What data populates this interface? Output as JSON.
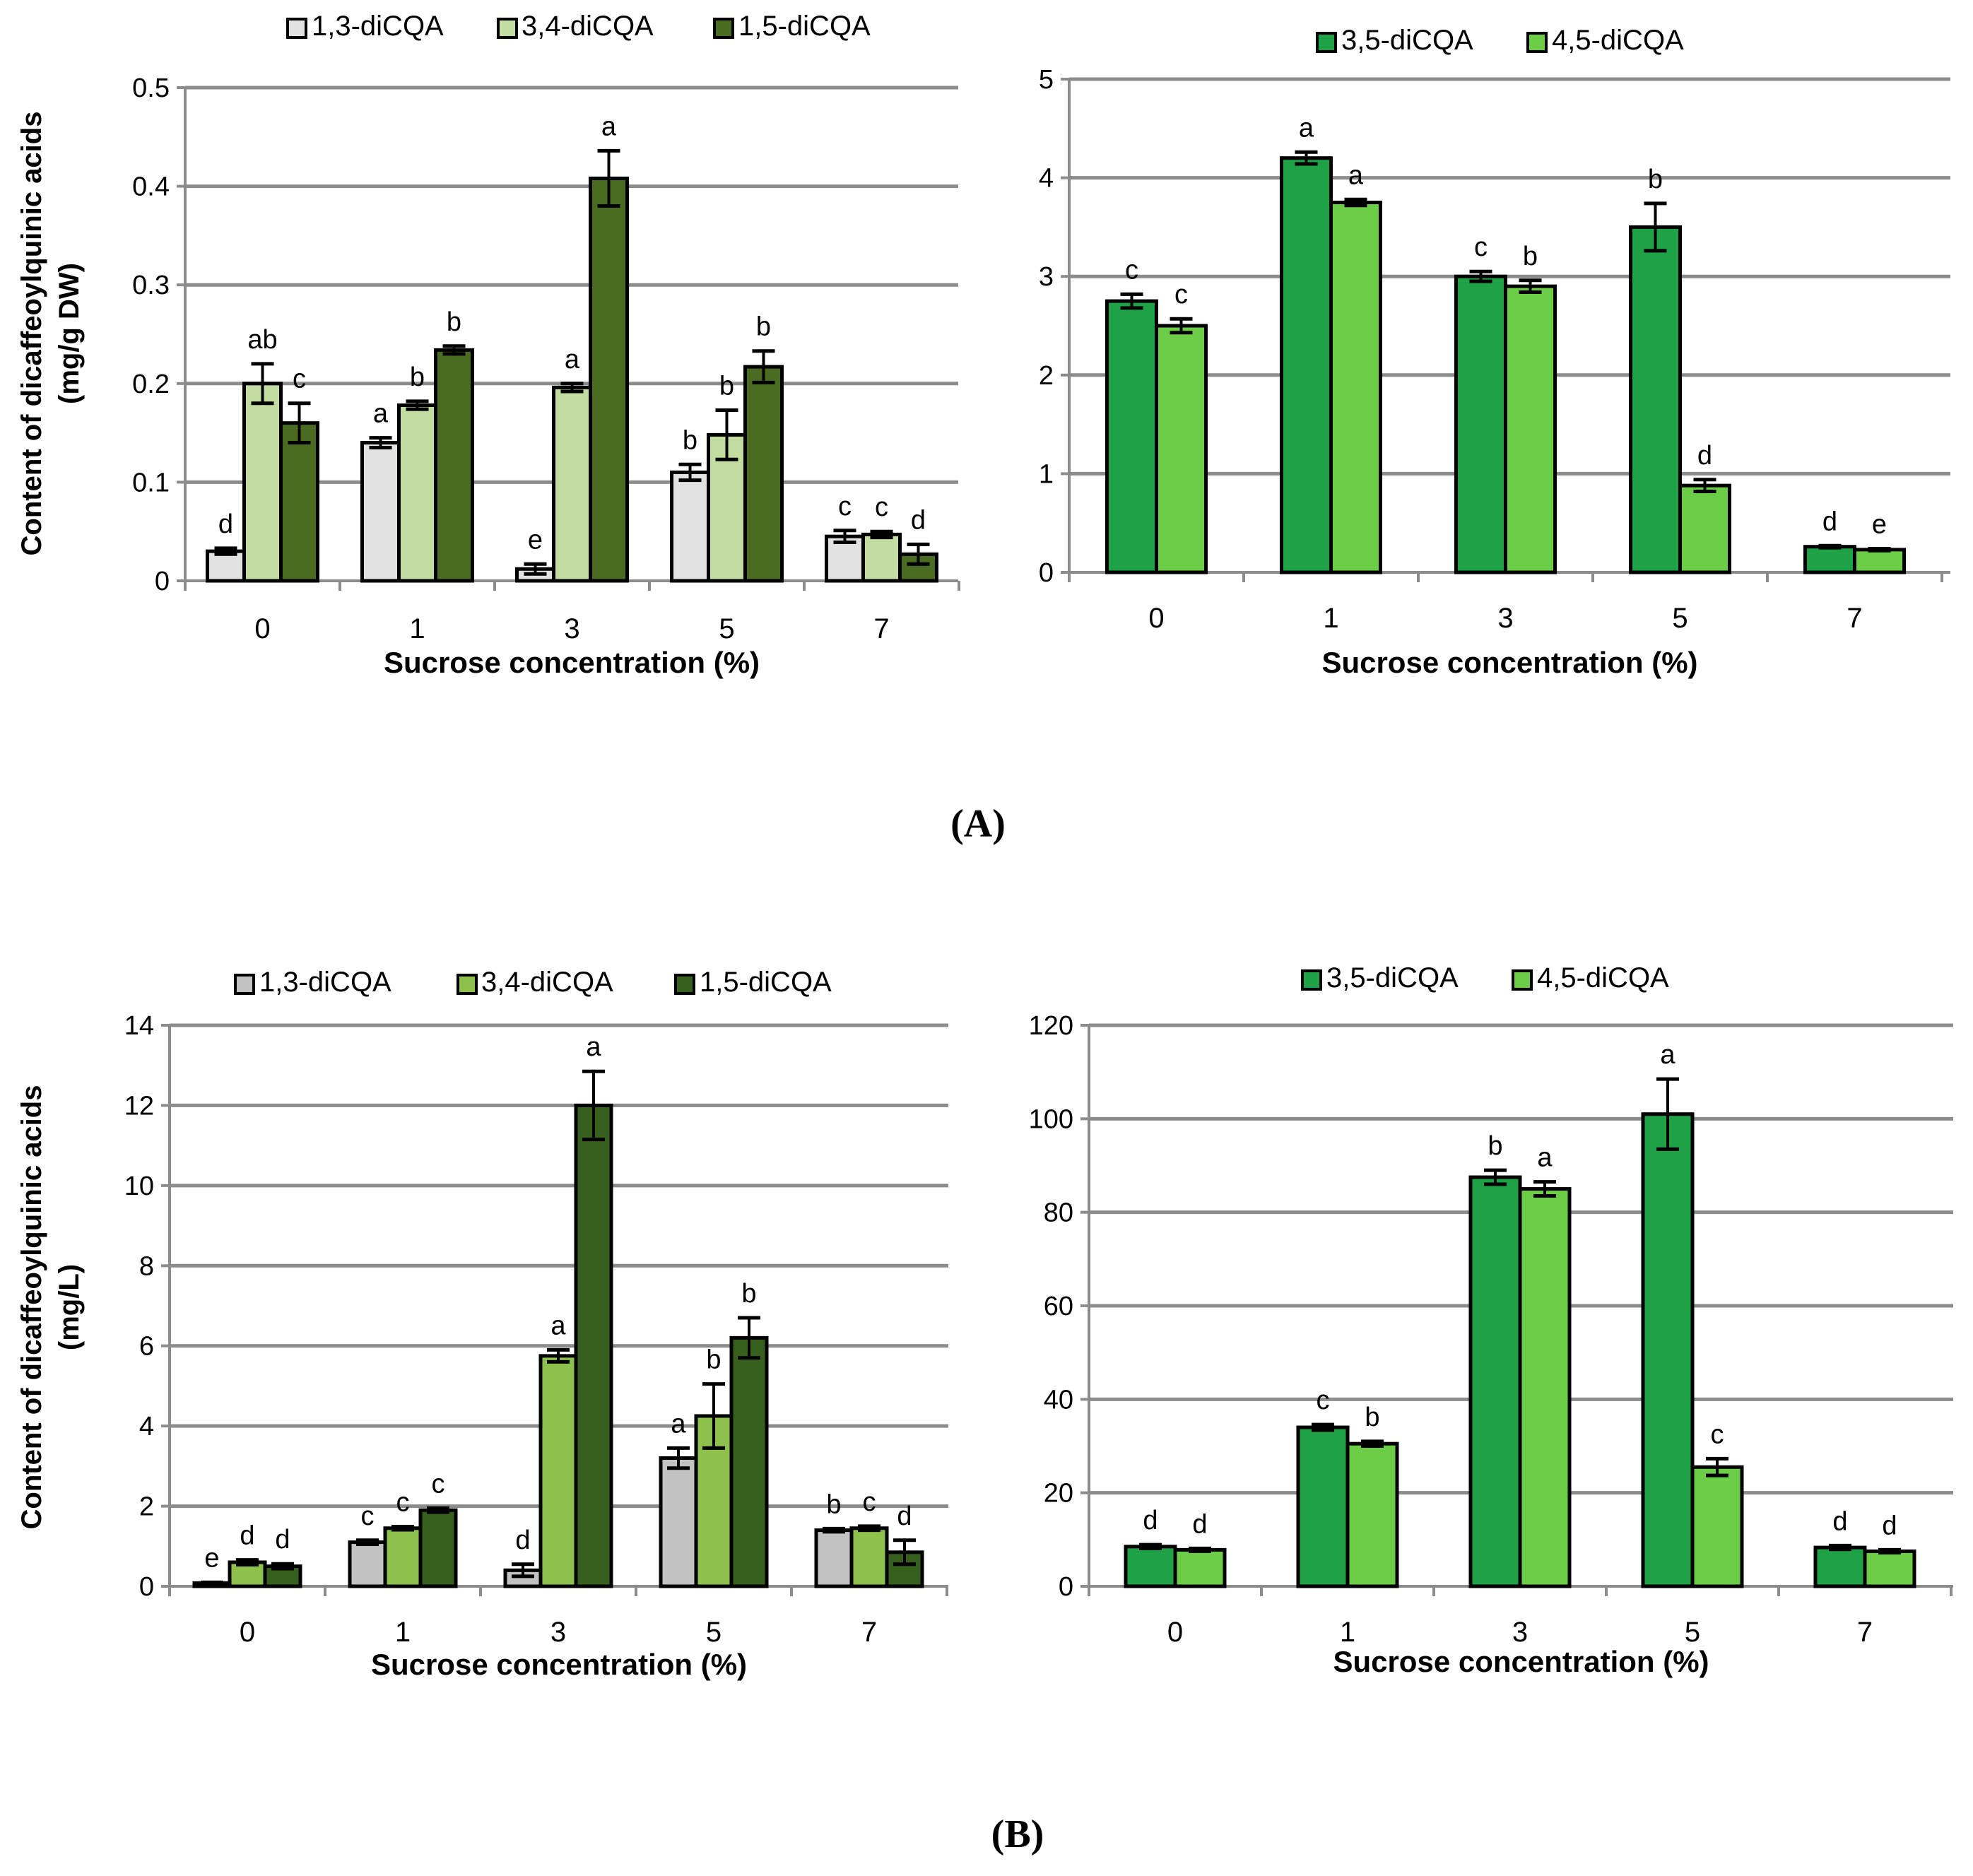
{
  "panels": [
    {
      "id": "A",
      "label": "(A)"
    },
    {
      "id": "B",
      "label": "(B)"
    }
  ],
  "chart_data": [
    {
      "id": "A-left",
      "type": "bar",
      "panel": "A",
      "title": "",
      "xlabel": "Sucrose concentration (%)",
      "ylabel": [
        "Content of dicaffeoylquinic acids",
        "(mg/g DW)"
      ],
      "categories": [
        "0",
        "1",
        "3",
        "5",
        "7"
      ],
      "ylim": [
        0,
        0.5
      ],
      "yticks": [
        0,
        0.1,
        0.2,
        0.3,
        0.4,
        0.5
      ],
      "ytick_labels": [
        "0",
        "0.1",
        "0.2",
        "0.3",
        "0.4",
        "0.5"
      ],
      "grid": true,
      "legend": "top",
      "series": [
        {
          "name": "1,3-diCQA",
          "color": "#e2e2e2",
          "values": [
            0.03,
            0.14,
            0.012,
            0.11,
            0.045
          ],
          "errors": [
            0.003,
            0.005,
            0.005,
            0.008,
            0.006
          ],
          "letters": [
            "d",
            "a",
            "e",
            "b",
            "c"
          ]
        },
        {
          "name": "3,4-diCQA",
          "color": "#c3dca2",
          "values": [
            0.2,
            0.178,
            0.196,
            0.148,
            0.047
          ],
          "errors": [
            0.02,
            0.004,
            0.004,
            0.025,
            0.003
          ],
          "letters": [
            "ab",
            "b",
            "a",
            "b",
            "c"
          ]
        },
        {
          "name": "1,5-diCQA",
          "color": "#4a6b22",
          "values": [
            0.16,
            0.234,
            0.408,
            0.217,
            0.027
          ],
          "errors": [
            0.02,
            0.004,
            0.028,
            0.016,
            0.01
          ],
          "letters": [
            "c",
            "b",
            "a",
            "b",
            "d"
          ]
        }
      ]
    },
    {
      "id": "A-right",
      "type": "bar",
      "panel": "A",
      "title": "",
      "xlabel": "Sucrose concentration (%)",
      "ylabel": "",
      "categories": [
        "0",
        "1",
        "3",
        "5",
        "7"
      ],
      "ylim": [
        0,
        5
      ],
      "yticks": [
        0,
        1,
        2,
        3,
        4,
        5
      ],
      "ytick_labels": [
        "0",
        "1",
        "2",
        "3",
        "4",
        "5"
      ],
      "grid": true,
      "legend": "top",
      "series": [
        {
          "name": "3,5-diCQA",
          "color": "#1ea245",
          "values": [
            2.75,
            4.2,
            3.0,
            3.5,
            0.26
          ],
          "errors": [
            0.07,
            0.06,
            0.05,
            0.24,
            0.01
          ],
          "letters": [
            "c",
            "a",
            "c",
            "b",
            "d"
          ]
        },
        {
          "name": "4,5-diCQA",
          "color": "#6cce46",
          "values": [
            2.5,
            3.75,
            2.9,
            0.88,
            0.23
          ],
          "errors": [
            0.07,
            0.03,
            0.06,
            0.06,
            0.01
          ],
          "letters": [
            "c",
            "a",
            "b",
            "d",
            "e"
          ]
        }
      ]
    },
    {
      "id": "B-left",
      "type": "bar",
      "panel": "B",
      "title": "",
      "xlabel": "Sucrose concentration (%)",
      "ylabel": [
        "Content of dicaffeoylquinic acids",
        "(mg/L)"
      ],
      "categories": [
        "0",
        "1",
        "3",
        "5",
        "7"
      ],
      "ylim": [
        0,
        14
      ],
      "yticks": [
        0,
        2,
        4,
        6,
        8,
        10,
        12,
        14
      ],
      "ytick_labels": [
        "0",
        "2",
        "4",
        "6",
        "8",
        "10",
        "12",
        "14"
      ],
      "grid": true,
      "legend": "top",
      "series": [
        {
          "name": "1,3-diCQA",
          "color": "#c2c2c2",
          "values": [
            0.08,
            1.1,
            0.4,
            3.2,
            1.4
          ],
          "errors": [
            0.02,
            0.05,
            0.15,
            0.25,
            0.04
          ],
          "letters": [
            "e",
            "c",
            "d",
            "a",
            "b"
          ]
        },
        {
          "name": "3,4-diCQA",
          "color": "#8ec14c",
          "values": [
            0.6,
            1.45,
            5.75,
            4.25,
            1.45
          ],
          "errors": [
            0.06,
            0.04,
            0.15,
            0.8,
            0.05
          ],
          "letters": [
            "d",
            "c",
            "a",
            "b",
            "c"
          ]
        },
        {
          "name": "1,5-diCQA",
          "color": "#375f1e",
          "values": [
            0.5,
            1.9,
            12.0,
            6.2,
            0.85
          ],
          "errors": [
            0.06,
            0.05,
            0.85,
            0.5,
            0.3
          ],
          "letters": [
            "d",
            "c",
            "a",
            "b",
            "d"
          ]
        }
      ]
    },
    {
      "id": "B-right",
      "type": "bar",
      "panel": "B",
      "title": "",
      "xlabel": "Sucrose concentration (%)",
      "ylabel": "",
      "categories": [
        "0",
        "1",
        "3",
        "5",
        "7"
      ],
      "ylim": [
        0,
        120
      ],
      "yticks": [
        0,
        20,
        40,
        60,
        80,
        100,
        120
      ],
      "ytick_labels": [
        "0",
        "20",
        "40",
        "60",
        "80",
        "100",
        "120"
      ],
      "grid": true,
      "legend": "top",
      "series": [
        {
          "name": "3,5-diCQA",
          "color": "#1ea245",
          "values": [
            8.5,
            34.0,
            87.5,
            101.0,
            8.3
          ],
          "errors": [
            0.4,
            0.6,
            1.5,
            7.5,
            0.4
          ],
          "letters": [
            "d",
            "c",
            "b",
            "a",
            "d"
          ]
        },
        {
          "name": "4,5-diCQA",
          "color": "#6cce46",
          "values": [
            7.8,
            30.5,
            85.0,
            25.5,
            7.5
          ],
          "errors": [
            0.3,
            0.5,
            1.5,
            1.8,
            0.3
          ],
          "letters": [
            "d",
            "b",
            "a",
            "c",
            "d"
          ]
        }
      ]
    }
  ]
}
